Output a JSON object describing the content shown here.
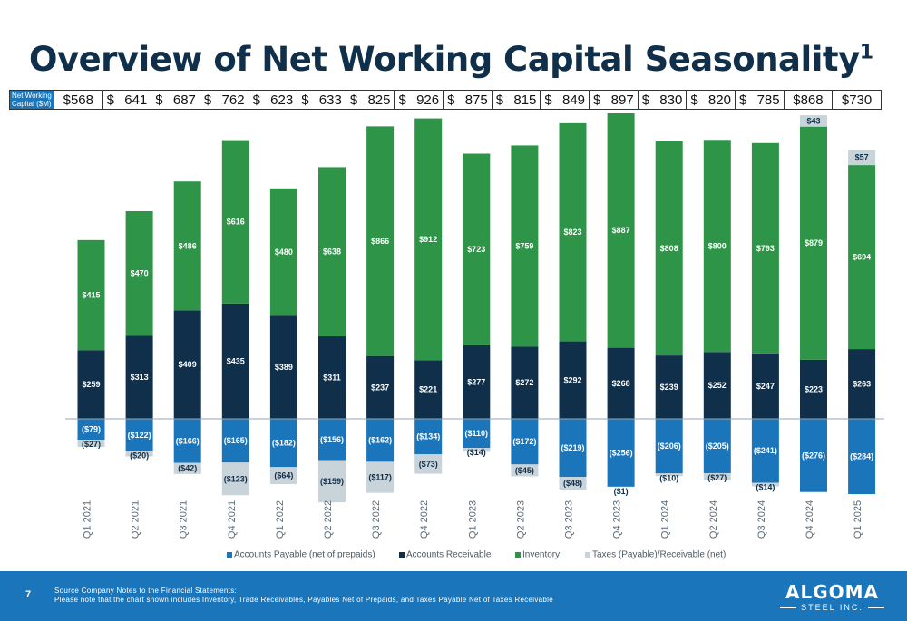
{
  "title": "Overview of Net Working Capital Seasonality",
  "title_sup": "1",
  "nwc_table": {
    "label": "Net Working Capital ($M)",
    "label_line1": "Net Working",
    "label_line2": "Capital ($M)",
    "cells": [
      {
        "cur": "",
        "num": "$568"
      },
      {
        "cur": "$",
        "num": "641"
      },
      {
        "cur": "$",
        "num": "687"
      },
      {
        "cur": "$",
        "num": "762"
      },
      {
        "cur": "$",
        "num": "623"
      },
      {
        "cur": "$",
        "num": "633"
      },
      {
        "cur": "$",
        "num": "825"
      },
      {
        "cur": "$",
        "num": "926"
      },
      {
        "cur": "$",
        "num": "875"
      },
      {
        "cur": "$",
        "num": "815"
      },
      {
        "cur": "$",
        "num": "849"
      },
      {
        "cur": "$",
        "num": "897"
      },
      {
        "cur": "$",
        "num": "830"
      },
      {
        "cur": "$",
        "num": "820"
      },
      {
        "cur": "$",
        "num": "785"
      },
      {
        "cur": "",
        "num": "$868"
      },
      {
        "cur": "",
        "num": "$730"
      }
    ]
  },
  "chart_data": {
    "type": "bar",
    "stacked": true,
    "categories": [
      "Q1 2021",
      "Q2 2021",
      "Q3 2021",
      "Q4 2021",
      "Q1 2022",
      "Q2 2022",
      "Q3 2022",
      "Q4 2022",
      "Q1 2023",
      "Q2 2023",
      "Q3 2023",
      "Q4 2023",
      "Q1 2024",
      "Q2 2024",
      "Q3 2024",
      "Q4 2024",
      "Q1 2025"
    ],
    "series": [
      {
        "name": "Accounts Payable (net of prepaids)",
        "color": "#1b75bb",
        "text_color": "#ffffff",
        "values": [
          -79,
          -122,
          -166,
          -165,
          -182,
          -156,
          -162,
          -134,
          -110,
          -172,
          -219,
          -256,
          -206,
          -205,
          -241,
          -276,
          -284
        ],
        "labels": [
          "($79)",
          "($122)",
          "($166)",
          "($165)",
          "($182)",
          "($156)",
          "($162)",
          "($134)",
          "($110)",
          "($172)",
          "($219)",
          "($256)",
          "($206)",
          "($205)",
          "($241)",
          "($276)",
          "($284)"
        ]
      },
      {
        "name": "Accounts Receivable",
        "color": "#0f2f4a",
        "text_color": "#ffffff",
        "values": [
          259,
          313,
          409,
          435,
          389,
          311,
          237,
          221,
          277,
          272,
          292,
          268,
          239,
          252,
          247,
          223,
          263
        ],
        "labels": [
          "$259",
          "$313",
          "$409",
          "$435",
          "$389",
          "$311",
          "$237",
          "$221",
          "$277",
          "$272",
          "$292",
          "$268",
          "$239",
          "$252",
          "$247",
          "$223",
          "$263"
        ]
      },
      {
        "name": "Inventory",
        "color": "#2e9548",
        "text_color": "#ffffff",
        "values": [
          415,
          470,
          486,
          616,
          480,
          638,
          866,
          912,
          723,
          759,
          823,
          887,
          808,
          800,
          793,
          879,
          694
        ],
        "labels": [
          "$415",
          "$470",
          "$486",
          "$616",
          "$480",
          "$638",
          "$866",
          "$912",
          "$723",
          "$759",
          "$823",
          "$887",
          "$808",
          "$800",
          "$793",
          "$879",
          "$694"
        ]
      },
      {
        "name": "Taxes (Payable)/Receivable (net)",
        "color": "#c9d3da",
        "text_color": "#0f2f4a",
        "values": [
          -27,
          -20,
          -42,
          -123,
          -64,
          -159,
          -117,
          -73,
          -14,
          -45,
          -48,
          -1,
          -10,
          -27,
          -14,
          43,
          57
        ],
        "labels": [
          "($27)",
          "($20)",
          "($42)",
          "($123)",
          "($64)",
          "($159)",
          "($117)",
          "($73)",
          "($14)",
          "($45)",
          "($48)",
          "($1)",
          "($10)",
          "($27)",
          "($14)",
          "$43",
          "$57"
        ]
      }
    ],
    "legend_position": "bottom",
    "grid": false
  },
  "footer": {
    "page_number": "7",
    "source_line1": "Source Company Notes to the Financial Statements:",
    "source_line2": "Please note that the chart shown includes Inventory, Trade Receivables,  Payables Net of Prepaids, and Taxes Payable Net of Taxes Receivable"
  },
  "logo": {
    "main": "ALGOMA",
    "sub": "STEEL INC."
  }
}
